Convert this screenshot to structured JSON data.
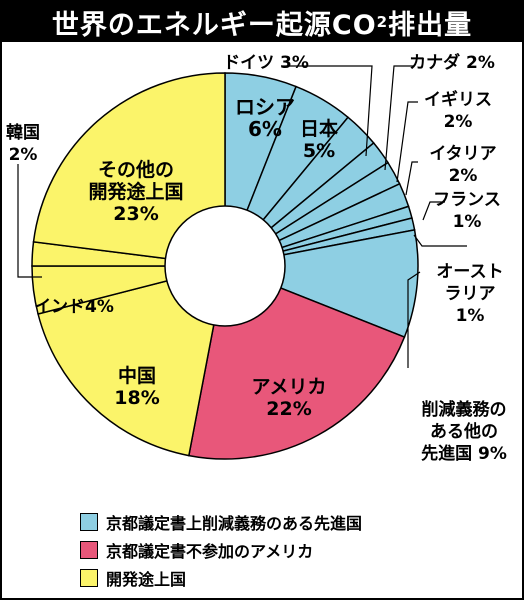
{
  "chart_data": {
    "type": "pie",
    "title": "世界のエネルギー起源CO2排出量",
    "title_main": "世界のエネルギー起源CO",
    "title_sub": "2",
    "title_tail": "排出量",
    "slices": [
      {
        "label": "ロシア",
        "value": 6,
        "value_label": "6%",
        "group": 0
      },
      {
        "label": "日本",
        "value": 5,
        "value_label": "5%",
        "group": 0
      },
      {
        "label": "ドイツ",
        "value": 3,
        "value_label": "3%",
        "group": 0
      },
      {
        "label": "カナダ",
        "value": 2,
        "value_label": "2%",
        "group": 0
      },
      {
        "label": "イギリス",
        "value": 2,
        "value_label": "2%",
        "group": 0
      },
      {
        "label": "イタリア",
        "value": 2,
        "value_label": "2%",
        "group": 0
      },
      {
        "label": "フランス",
        "value": 1,
        "value_label": "1%",
        "group": 0
      },
      {
        "label": "オーストラリア",
        "value": 1,
        "value_label": "1%",
        "group": 0
      },
      {
        "label": "削減義務のある他の先進国",
        "value": 9,
        "value_label": "9%",
        "group": 0
      },
      {
        "label": "アメリカ",
        "value": 22,
        "value_label": "22%",
        "group": 1
      },
      {
        "label": "中国",
        "value": 18,
        "value_label": "18%",
        "group": 2
      },
      {
        "label": "インド",
        "value": 4,
        "value_label": "4%",
        "group": 2
      },
      {
        "label": "韓国",
        "value": 2,
        "value_label": "2%",
        "group": 2
      },
      {
        "label": "その他の開発途上国",
        "value": 23,
        "value_label": "23%",
        "group": 2
      }
    ],
    "groups": [
      {
        "name": "京都議定書上削減義務のある先進国",
        "color": "#8ecfe3"
      },
      {
        "name": "京都議定書不参加のアメリカ",
        "color": "#e8577a"
      },
      {
        "name": "開発途上国",
        "color": "#fbf46a"
      }
    ]
  },
  "labels": {
    "russia": [
      "ロシア",
      "6%"
    ],
    "japan": [
      "日本",
      "5%"
    ],
    "germany": [
      "ドイツ 3%"
    ],
    "canada": [
      "カナダ 2%"
    ],
    "uk": [
      "イギリス",
      "2%"
    ],
    "italy": [
      "イタリア",
      "2%"
    ],
    "france": [
      "フランス",
      "1%"
    ],
    "australia": [
      "オースト",
      "ラリア",
      "1%"
    ],
    "other_dev": [
      "削減義務の",
      "ある他の",
      "先進国 9%"
    ],
    "usa": [
      "アメリカ",
      "22%"
    ],
    "china": [
      "中国",
      "18%"
    ],
    "india": [
      "インド4%"
    ],
    "korea": [
      "韓国",
      "2%"
    ],
    "others": [
      "その他の",
      "開発途上国",
      "23%"
    ]
  }
}
